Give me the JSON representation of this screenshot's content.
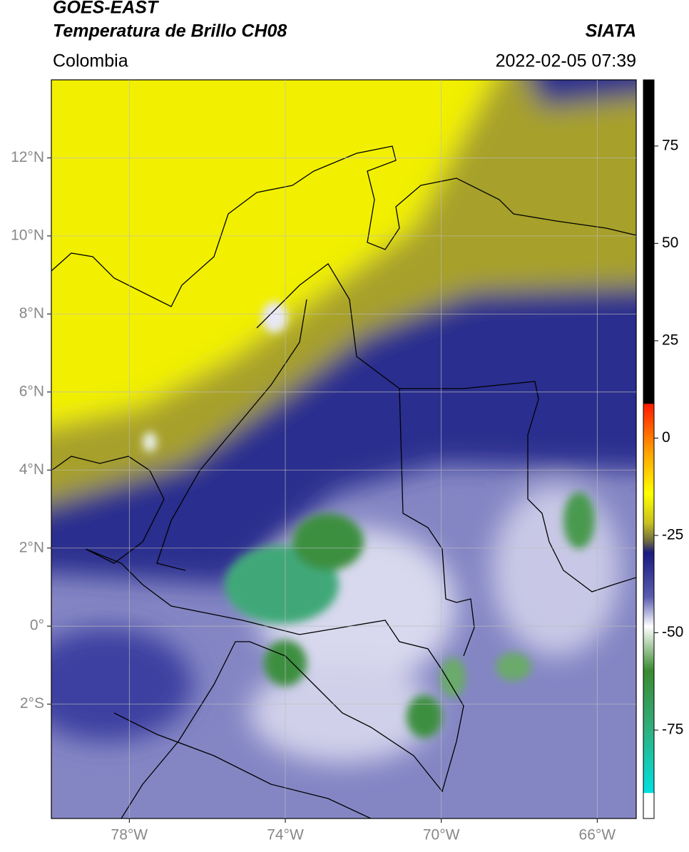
{
  "header": {
    "title": "GOES-EAST",
    "subtitle": "Temperatura de Brillo CH08",
    "region": "Colombia",
    "source": "SIATA",
    "datetime": "2022-02-05 07:39"
  },
  "map": {
    "xlim": [
      -80,
      -65
    ],
    "ylim": [
      -4.93,
      14
    ],
    "xticks": [
      {
        "value": -78,
        "label": "78°W"
      },
      {
        "value": -74,
        "label": "74°W"
      },
      {
        "value": -70,
        "label": "70°W"
      },
      {
        "value": -66,
        "label": "66°W"
      }
    ],
    "yticks": [
      {
        "value": 12,
        "label": "12°N"
      },
      {
        "value": 10,
        "label": "10°N"
      },
      {
        "value": 8,
        "label": "8°N"
      },
      {
        "value": 6,
        "label": "6°N"
      },
      {
        "value": 4,
        "label": "4°N"
      },
      {
        "value": 2,
        "label": "2°N"
      },
      {
        "value": 0,
        "label": "0°"
      },
      {
        "value": -2,
        "label": "2°S"
      }
    ]
  },
  "colorbar": {
    "lim": [
      -97.7,
      92
    ],
    "ticks": [
      75,
      50,
      25,
      0,
      -25,
      -50,
      -75
    ]
  }
}
